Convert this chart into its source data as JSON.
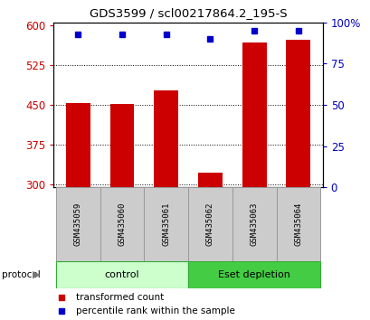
{
  "title": "GDS3599 / scl00217864.2_195-S",
  "categories": [
    "GSM435059",
    "GSM435060",
    "GSM435061",
    "GSM435062",
    "GSM435063",
    "GSM435064"
  ],
  "transformed_counts": [
    453,
    452,
    477,
    323,
    568,
    572
  ],
  "percentile_ranks": [
    93,
    93,
    93,
    90,
    95,
    95
  ],
  "ylim_left": [
    295,
    605
  ],
  "ylim_right": [
    0,
    100
  ],
  "yticks_left": [
    300,
    375,
    450,
    525,
    600
  ],
  "yticks_right": [
    0,
    25,
    50,
    75,
    100
  ],
  "ytick_labels_right": [
    "0",
    "25",
    "50",
    "75",
    "100%"
  ],
  "bar_color": "#cc0000",
  "dot_color": "#0000cc",
  "groups": [
    {
      "label": "control",
      "indices": [
        0,
        1,
        2
      ],
      "color": "#ccffcc"
    },
    {
      "label": "Eset depletion",
      "indices": [
        3,
        4,
        5
      ],
      "color": "#44cc44"
    }
  ],
  "protocol_label": "protocol",
  "legend_items": [
    {
      "label": "transformed count",
      "color": "#cc0000"
    },
    {
      "label": "percentile rank within the sample",
      "color": "#0000cc"
    }
  ],
  "tick_label_color_left": "#cc0000",
  "tick_label_color_right": "#0000bb",
  "bar_bottom": 295,
  "dot_size": 5
}
